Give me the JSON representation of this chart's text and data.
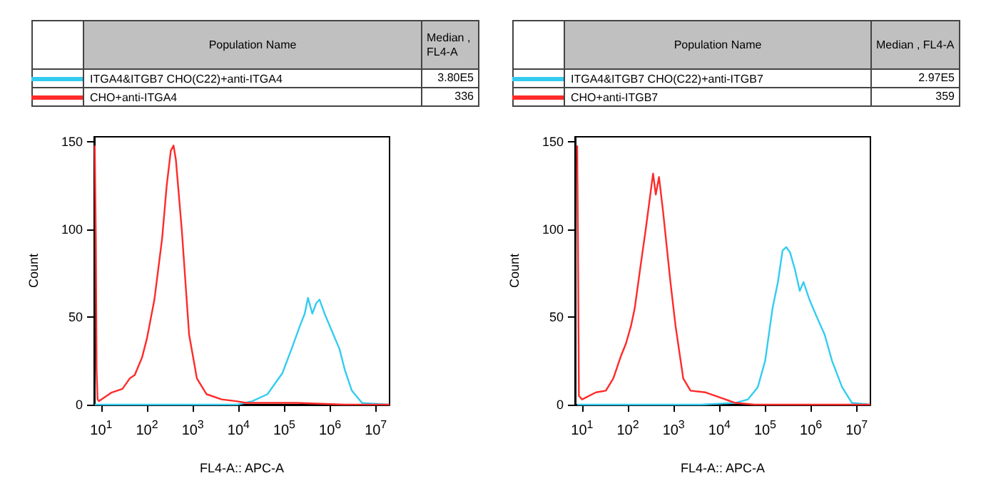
{
  "chart_data": [
    {
      "type": "line",
      "xlabel": "FL4-A:: APC-A",
      "ylabel": "Count",
      "legend": "top",
      "legend_title": "Population Name",
      "annotations": [
        "Median , FL4-A",
        "3.80E5",
        "336"
      ],
      "log": "x",
      "grid": false,
      "marker": "none",
      "xlim": [
        7,
        20000000
      ],
      "ylim": [
        0,
        153
      ],
      "xticks": [
        {
          "value": 10,
          "label": "10$^{1}$"
        },
        {
          "value": 100,
          "label": "10$^{2}$"
        },
        {
          "value": 1000,
          "label": "10$^{3}$"
        },
        {
          "value": 10000,
          "label": "10$^{4}$"
        },
        {
          "value": 100000,
          "label": "10$^{5}$"
        },
        {
          "value": 1000000,
          "label": "10$^{6}$"
        },
        {
          "value": 10000000,
          "label": "10$^{7}$"
        }
      ],
      "yticks": [
        0,
        50,
        100,
        150
      ],
      "series": [
        {
          "name": "ITGA4&ITGB7 CHO(C22)+anti-ITGA4",
          "color": "#33ccf0",
          "x": [
            7.2,
            9300,
            20000,
            43000,
            91000,
            150000,
            220000,
            280000,
            330000,
            410000,
            500000,
            590000,
            760000,
            1100000,
            1600000,
            2100000,
            3000000,
            5000000,
            20000000
          ],
          "values": [
            0,
            0,
            2,
            6,
            18,
            33,
            45,
            52,
            61,
            52,
            58,
            60,
            52,
            42,
            32,
            20,
            8,
            1,
            0
          ]
        },
        {
          "name": "CHO+anti-ITGA4",
          "color": "#ff2a2a",
          "x": [
            7.2,
            7.6,
            7.9,
            8.3,
            8.9,
            17,
            29,
            42,
            54,
            78,
            100,
            145,
            214,
            269,
            331,
            380,
            427,
            575,
            832,
            1230,
            2000,
            4270,
            8900,
            14800,
            186000,
            2200000,
            20000000
          ],
          "values": [
            148,
            96,
            20,
            3,
            2,
            7,
            9,
            15,
            17,
            27,
            38,
            60,
            95,
            125,
            145,
            148,
            140,
            100,
            40,
            15,
            6,
            3,
            2,
            1,
            1,
            0,
            0
          ]
        }
      ]
    },
    {
      "type": "line",
      "xlabel": "FL4-A:: APC-A",
      "ylabel": "Count",
      "legend": "top",
      "legend_title": "Population Name",
      "annotations": [
        "Median , FL4-A",
        "2.97E5",
        "359"
      ],
      "log": "x",
      "grid": false,
      "marker": "none",
      "xlim": [
        7,
        20000000
      ],
      "ylim": [
        0,
        153
      ],
      "xticks": [
        {
          "value": 10,
          "label": "10$^{1}$"
        },
        {
          "value": 100,
          "label": "10$^{2}$"
        },
        {
          "value": 1000,
          "label": "10$^{3}$"
        },
        {
          "value": 10000,
          "label": "10$^{4}$"
        },
        {
          "value": 100000,
          "label": "10$^{5}$"
        },
        {
          "value": 1000000,
          "label": "10$^{6}$"
        },
        {
          "value": 10000000,
          "label": "10$^{7}$"
        }
      ],
      "yticks": [
        0,
        50,
        100,
        150
      ],
      "series": [
        {
          "name": "ITGA4&ITGB7 CHO(C22)+anti-ITGB7",
          "color": "#33ccf0",
          "x": [
            7.8,
            3900,
            22000,
            42000,
            69000,
            100000,
            145000,
            190000,
            240000,
            290000,
            350000,
            450000,
            570000,
            690000,
            930000,
            1350000,
            2000000,
            2900000,
            4800000,
            7900000,
            20000000
          ],
          "values": [
            0,
            0,
            1,
            3,
            10,
            25,
            55,
            70,
            88,
            90,
            87,
            77,
            65,
            70,
            60,
            50,
            40,
            25,
            10,
            1,
            0
          ]
        },
        {
          "name": "CHO+anti-ITGB7",
          "color": "#ff2a2a",
          "x": [
            7.8,
            8.1,
            8.5,
            10,
            20,
            33,
            48,
            71,
            91,
            117,
            141,
            191,
            245,
            302,
            355,
            407,
            479,
            589,
            851,
            1100,
            1620,
            2340,
            5000,
            10500,
            22400,
            60000,
            20000000
          ],
          "values": [
            148,
            95,
            5,
            3,
            7,
            8,
            15,
            28,
            35,
            45,
            55,
            80,
            100,
            118,
            132,
            120,
            130,
            110,
            70,
            45,
            15,
            8,
            7,
            4,
            1,
            0,
            0
          ]
        }
      ]
    }
  ]
}
